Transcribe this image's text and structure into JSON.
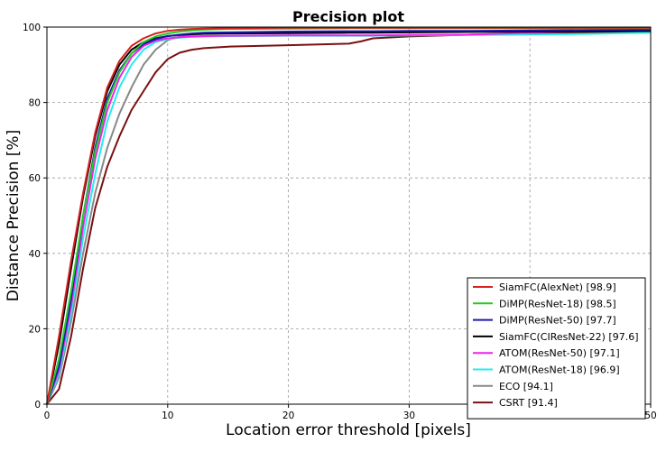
{
  "chart_data": {
    "type": "line",
    "title": "Precision plot",
    "xlabel": "Location error threshold [pixels]",
    "ylabel": "Distance Precision [%]",
    "xlim": [
      0,
      50
    ],
    "ylim": [
      0,
      100
    ],
    "xticks": [
      "0",
      "10",
      "20",
      "30",
      "40",
      "50"
    ],
    "yticks": [
      "0",
      "20",
      "40",
      "60",
      "80",
      "100"
    ],
    "grid": true,
    "legend_position": "lower-right",
    "x": [
      0,
      1,
      2,
      3,
      4,
      5,
      6,
      7,
      8,
      9,
      10,
      11,
      12,
      13,
      15,
      20,
      25,
      26,
      27,
      30,
      35,
      40,
      45,
      50
    ],
    "series": [
      {
        "name": "SiamFC(AlexNet) [98.9]",
        "color": "#d62020",
        "values": [
          0,
          18,
          38,
          56,
          72,
          84,
          91,
          95,
          97,
          98.3,
          99,
          99.3,
          99.5,
          99.6,
          99.7,
          99.8,
          99.8,
          99.8,
          99.8,
          99.8,
          99.8,
          99.8,
          99.8,
          99.8
        ]
      },
      {
        "name": "DiMP(ResNet-18) [98.5]",
        "color": "#22cc22",
        "values": [
          0,
          12,
          30,
          50,
          67,
          80,
          88,
          93,
          96,
          97.5,
          98.3,
          98.8,
          99.1,
          99.3,
          99.5,
          99.6,
          99.7,
          99.7,
          99.7,
          99.7,
          99.7,
          99.7,
          99.7,
          99.7
        ]
      },
      {
        "name": "DiMP(ResNet-50) [97.7]",
        "color": "#1a1aaa",
        "values": [
          0,
          10,
          28,
          50,
          68,
          81,
          88.5,
          93,
          95.5,
          96.8,
          97.6,
          98,
          98.3,
          98.5,
          98.6,
          98.8,
          98.9,
          98.9,
          98.9,
          99,
          99,
          99.1,
          99.2,
          99.3
        ]
      },
      {
        "name": "SiamFC(CIResNet-22) [97.6]",
        "color": "#000000",
        "values": [
          0,
          16,
          36,
          55,
          71,
          83,
          90,
          94,
          96,
          97,
          97.6,
          97.9,
          98.1,
          98.2,
          98.3,
          98.4,
          98.5,
          98.5,
          98.5,
          98.6,
          98.7,
          98.8,
          98.9,
          99
        ]
      },
      {
        "name": "ATOM(ResNet-50) [97.1]",
        "color": "#ee22ee",
        "values": [
          0,
          9,
          26,
          47,
          65,
          78,
          86.5,
          92,
          95,
          96.4,
          97,
          97.3,
          97.5,
          97.6,
          97.7,
          97.8,
          97.8,
          97.8,
          97.8,
          97.9,
          98,
          98.5,
          99,
          99.2
        ]
      },
      {
        "name": "ATOM(ResNet-18) [96.9]",
        "color": "#22eeee",
        "values": [
          0,
          8,
          24,
          44,
          61,
          75,
          84,
          90,
          94,
          96,
          96.8,
          97.2,
          97.4,
          97.5,
          97.6,
          97.7,
          97.7,
          97.7,
          97.7,
          97.8,
          97.9,
          98,
          98.2,
          98.5
        ]
      },
      {
        "name": "ECO [94.1]",
        "color": "#888888",
        "values": [
          0,
          7,
          22,
          40,
          56,
          68,
          77,
          84,
          90,
          94,
          96.5,
          97.5,
          98,
          98.2,
          98.4,
          98.6,
          98.7,
          98.7,
          98.7,
          98.8,
          98.9,
          99,
          99,
          99.1
        ]
      },
      {
        "name": "CSRT [91.4]",
        "color": "#7a1010",
        "values": [
          0,
          4,
          18,
          36,
          52,
          63,
          71,
          78,
          83,
          88,
          91.5,
          93.2,
          94,
          94.4,
          94.8,
          95.2,
          95.6,
          96.2,
          97,
          97.5,
          98,
          98.3,
          98.6,
          98.8
        ]
      }
    ]
  }
}
